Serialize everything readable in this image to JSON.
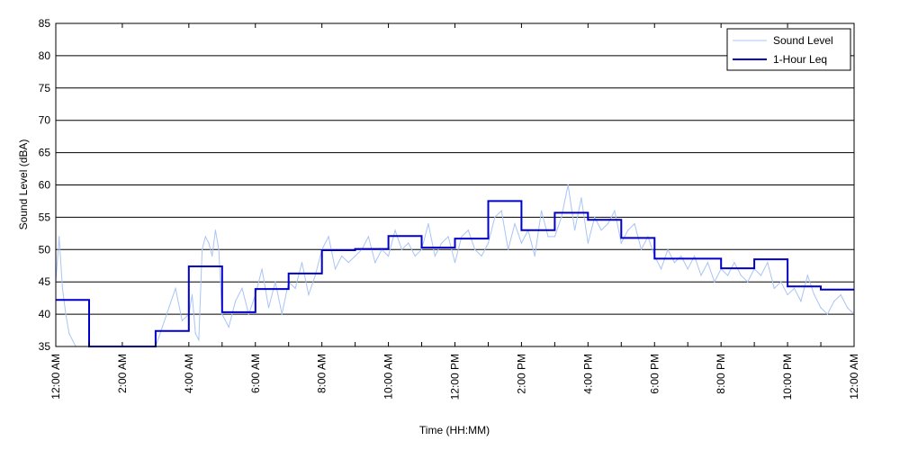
{
  "chart_data": {
    "type": "line",
    "title": "",
    "xlabel": "Time (HH:MM)",
    "ylabel": "Sound Level (dBA)",
    "ylim": [
      35,
      85
    ],
    "xlim": [
      0,
      24
    ],
    "yticks": [
      35,
      40,
      45,
      50,
      55,
      60,
      65,
      70,
      75,
      80,
      85
    ],
    "xticks": [
      {
        "hour": 0,
        "label": "12:00 AM"
      },
      {
        "hour": 2,
        "label": "2:00 AM"
      },
      {
        "hour": 4,
        "label": "4:00 AM"
      },
      {
        "hour": 6,
        "label": "6:00 AM"
      },
      {
        "hour": 8,
        "label": "8:00 AM"
      },
      {
        "hour": 10,
        "label": "10:00 AM"
      },
      {
        "hour": 12,
        "label": "12:00 PM"
      },
      {
        "hour": 14,
        "label": "2:00 PM"
      },
      {
        "hour": 16,
        "label": "4:00 PM"
      },
      {
        "hour": 18,
        "label": "6:00 PM"
      },
      {
        "hour": 20,
        "label": "8:00 PM"
      },
      {
        "hour": 22,
        "label": "10:00 PM"
      },
      {
        "hour": 24,
        "label": "12:00 AM"
      }
    ],
    "grid": "horizontal",
    "legend_position": "top-right",
    "colors": {
      "sound_level": "#a9c4f5",
      "leq": "#0000c8"
    },
    "series": [
      {
        "name": "Sound Level",
        "style": "thin-light-blue",
        "x": [
          0,
          0.1,
          0.2,
          0.3,
          0.4,
          0.5,
          0.6,
          0.7,
          0.8,
          0.9,
          1,
          1.5,
          2,
          2.5,
          3,
          3.2,
          3.4,
          3.6,
          3.8,
          4,
          4.1,
          4.2,
          4.3,
          4.4,
          4.5,
          4.6,
          4.7,
          4.8,
          4.9,
          5,
          5.2,
          5.4,
          5.6,
          5.8,
          6,
          6.2,
          6.4,
          6.6,
          6.8,
          7,
          7.2,
          7.4,
          7.6,
          7.8,
          8,
          8.2,
          8.4,
          8.6,
          8.8,
          9,
          9.2,
          9.4,
          9.6,
          9.8,
          10,
          10.2,
          10.4,
          10.6,
          10.8,
          11,
          11.2,
          11.4,
          11.6,
          11.8,
          12,
          12.2,
          12.4,
          12.6,
          12.8,
          13,
          13.2,
          13.4,
          13.6,
          13.8,
          14,
          14.2,
          14.4,
          14.6,
          14.8,
          15,
          15.2,
          15.4,
          15.6,
          15.8,
          16,
          16.2,
          16.4,
          16.6,
          16.8,
          17,
          17.2,
          17.4,
          17.6,
          17.8,
          18,
          18.2,
          18.4,
          18.6,
          18.8,
          19,
          19.2,
          19.4,
          19.6,
          19.8,
          20,
          20.2,
          20.4,
          20.6,
          20.8,
          21,
          21.2,
          21.4,
          21.6,
          21.8,
          22,
          22.2,
          22.4,
          22.6,
          22.8,
          23,
          23.2,
          23.4,
          23.6,
          23.8,
          24
        ],
        "values": [
          45,
          52,
          44,
          40,
          37,
          36,
          35,
          35,
          35,
          35,
          35,
          35,
          35,
          35,
          35,
          38,
          41,
          44,
          39,
          40,
          43,
          37,
          36,
          50,
          52,
          51,
          49,
          53,
          50,
          40,
          38,
          42,
          44,
          40,
          43,
          47,
          41,
          45,
          40,
          45,
          44,
          48,
          43,
          46,
          50,
          52,
          47,
          49,
          48,
          49,
          50,
          52,
          48,
          50,
          49,
          53,
          50,
          51,
          49,
          50,
          54,
          49,
          51,
          52,
          48,
          52,
          53,
          50,
          49,
          51,
          55,
          56,
          50,
          54,
          51,
          53,
          49,
          56,
          52,
          52,
          55,
          60,
          53,
          58,
          51,
          55,
          53,
          54,
          56,
          51,
          53,
          54,
          50,
          52,
          49,
          47,
          50,
          48,
          49,
          47,
          49,
          46,
          48,
          45,
          47,
          46,
          48,
          46,
          45,
          47,
          46,
          48,
          44,
          45,
          43,
          44,
          42,
          46,
          43,
          41,
          40,
          42,
          43,
          41,
          40
        ]
      },
      {
        "name": "1-Hour Leq",
        "style": "step",
        "hours": [
          0,
          1,
          2,
          3,
          4,
          5,
          6,
          7,
          8,
          9,
          10,
          11,
          12,
          13,
          14,
          15,
          16,
          17,
          18,
          19,
          20,
          21,
          22,
          23
        ],
        "values": [
          42.2,
          33.5,
          33.5,
          37.4,
          47.4,
          40.3,
          43.9,
          46.3,
          49.9,
          50.1,
          52.1,
          50.3,
          51.7,
          57.5,
          53,
          55.7,
          54.6,
          51.8,
          48.6,
          48.6,
          47.1,
          48.5,
          44.3,
          43.8
        ]
      }
    ]
  }
}
